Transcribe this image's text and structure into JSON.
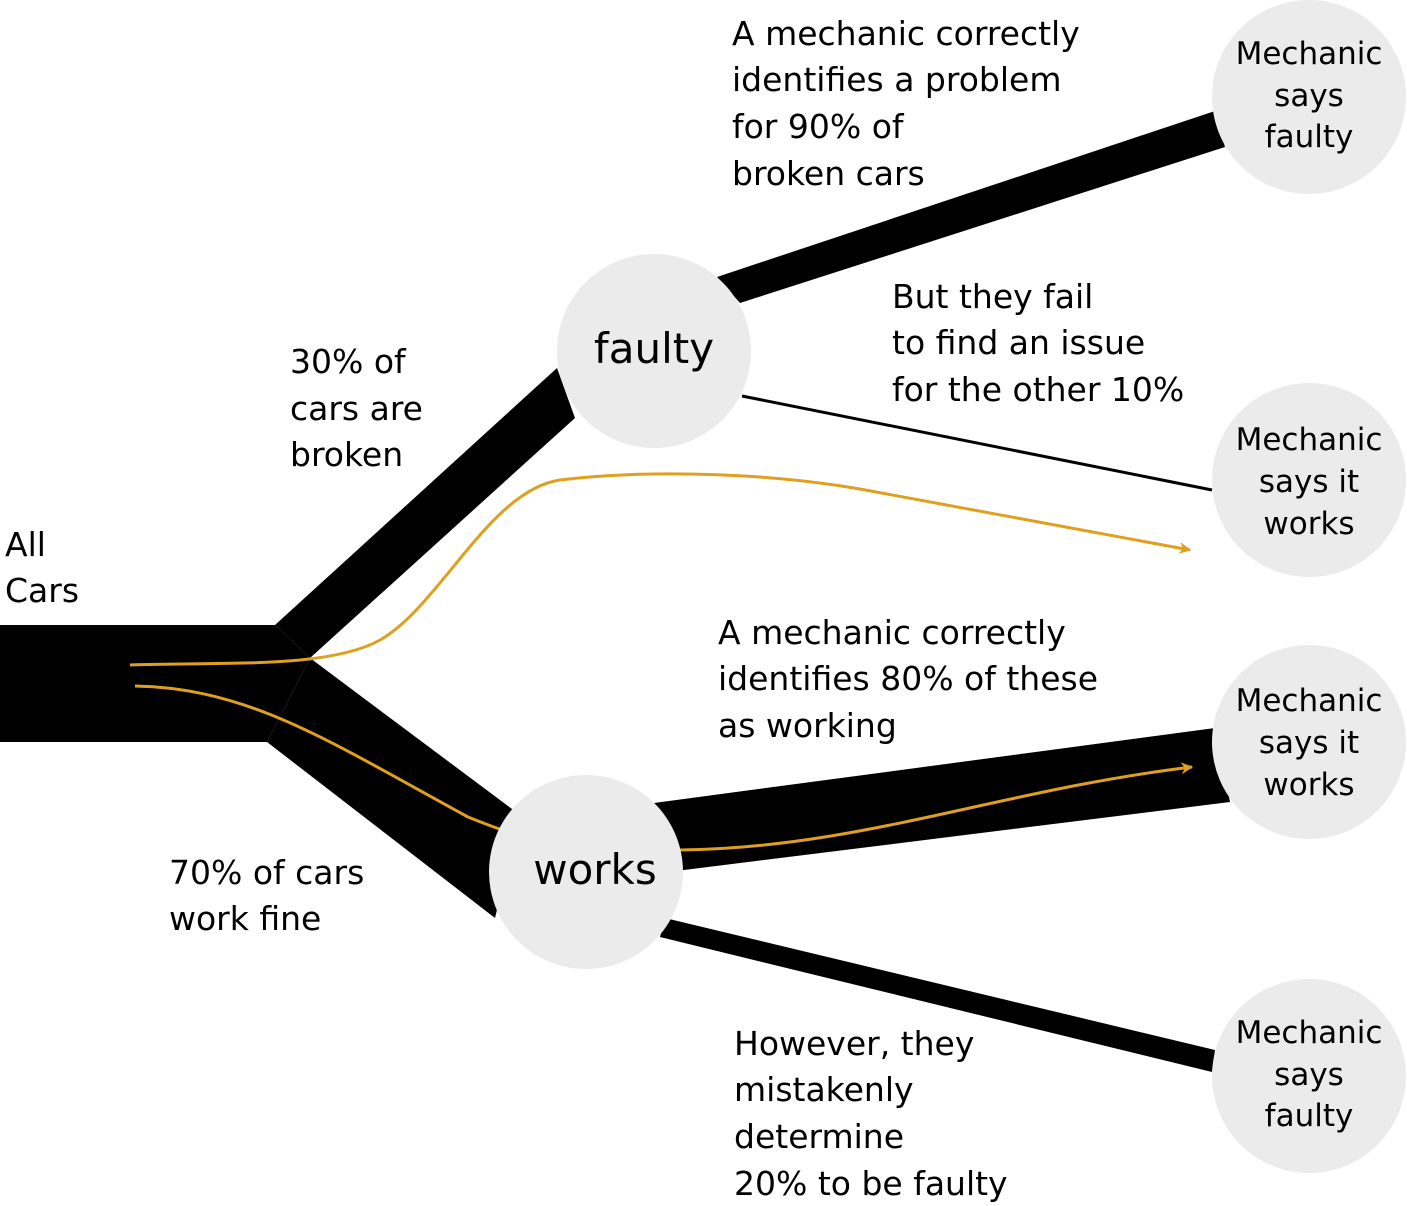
{
  "colors": {
    "flow": "#000000",
    "node_fill": "#ebebeb",
    "path_highlight": "#dea01e",
    "background": "#ffffff"
  },
  "root": {
    "label_lines": [
      "All",
      "Cars"
    ]
  },
  "nodes": {
    "faulty": {
      "label": "faulty"
    },
    "works": {
      "label": "works"
    },
    "outcomes": [
      {
        "lines": [
          "Mechanic",
          "says",
          "faulty"
        ]
      },
      {
        "lines": [
          "Mechanic",
          "says it",
          "works"
        ]
      },
      {
        "lines": [
          "Mechanic",
          "says it",
          "works"
        ]
      },
      {
        "lines": [
          "Mechanic",
          "says",
          "faulty"
        ]
      }
    ]
  },
  "annotations": {
    "broken": [
      "30% of",
      "cars are",
      "broken"
    ],
    "fine": [
      "70% of cars",
      "work fine"
    ],
    "faulty_correct": [
      "A mechanic correctly",
      "identifies a problem",
      "for 90% of",
      "broken cars"
    ],
    "faulty_missed": [
      "But they fail",
      "to find an issue",
      "for the other 10%"
    ],
    "works_correct": [
      "A mechanic correctly",
      "identifies 80% of these",
      "as working"
    ],
    "works_mistaken": [
      "However, they",
      "mistakenly",
      "determine",
      "20% to be faulty"
    ]
  },
  "flows": [
    {
      "from": "all-cars",
      "to": "faulty",
      "share": 0.3
    },
    {
      "from": "all-cars",
      "to": "works",
      "share": 0.7
    },
    {
      "from": "faulty",
      "to": "mechanic-says-faulty",
      "share": 0.9
    },
    {
      "from": "faulty",
      "to": "mechanic-says-it-works",
      "share": 0.1
    },
    {
      "from": "works",
      "to": "mechanic-says-it-works",
      "share": 0.8
    },
    {
      "from": "works",
      "to": "mechanic-says-faulty",
      "share": 0.2
    }
  ]
}
